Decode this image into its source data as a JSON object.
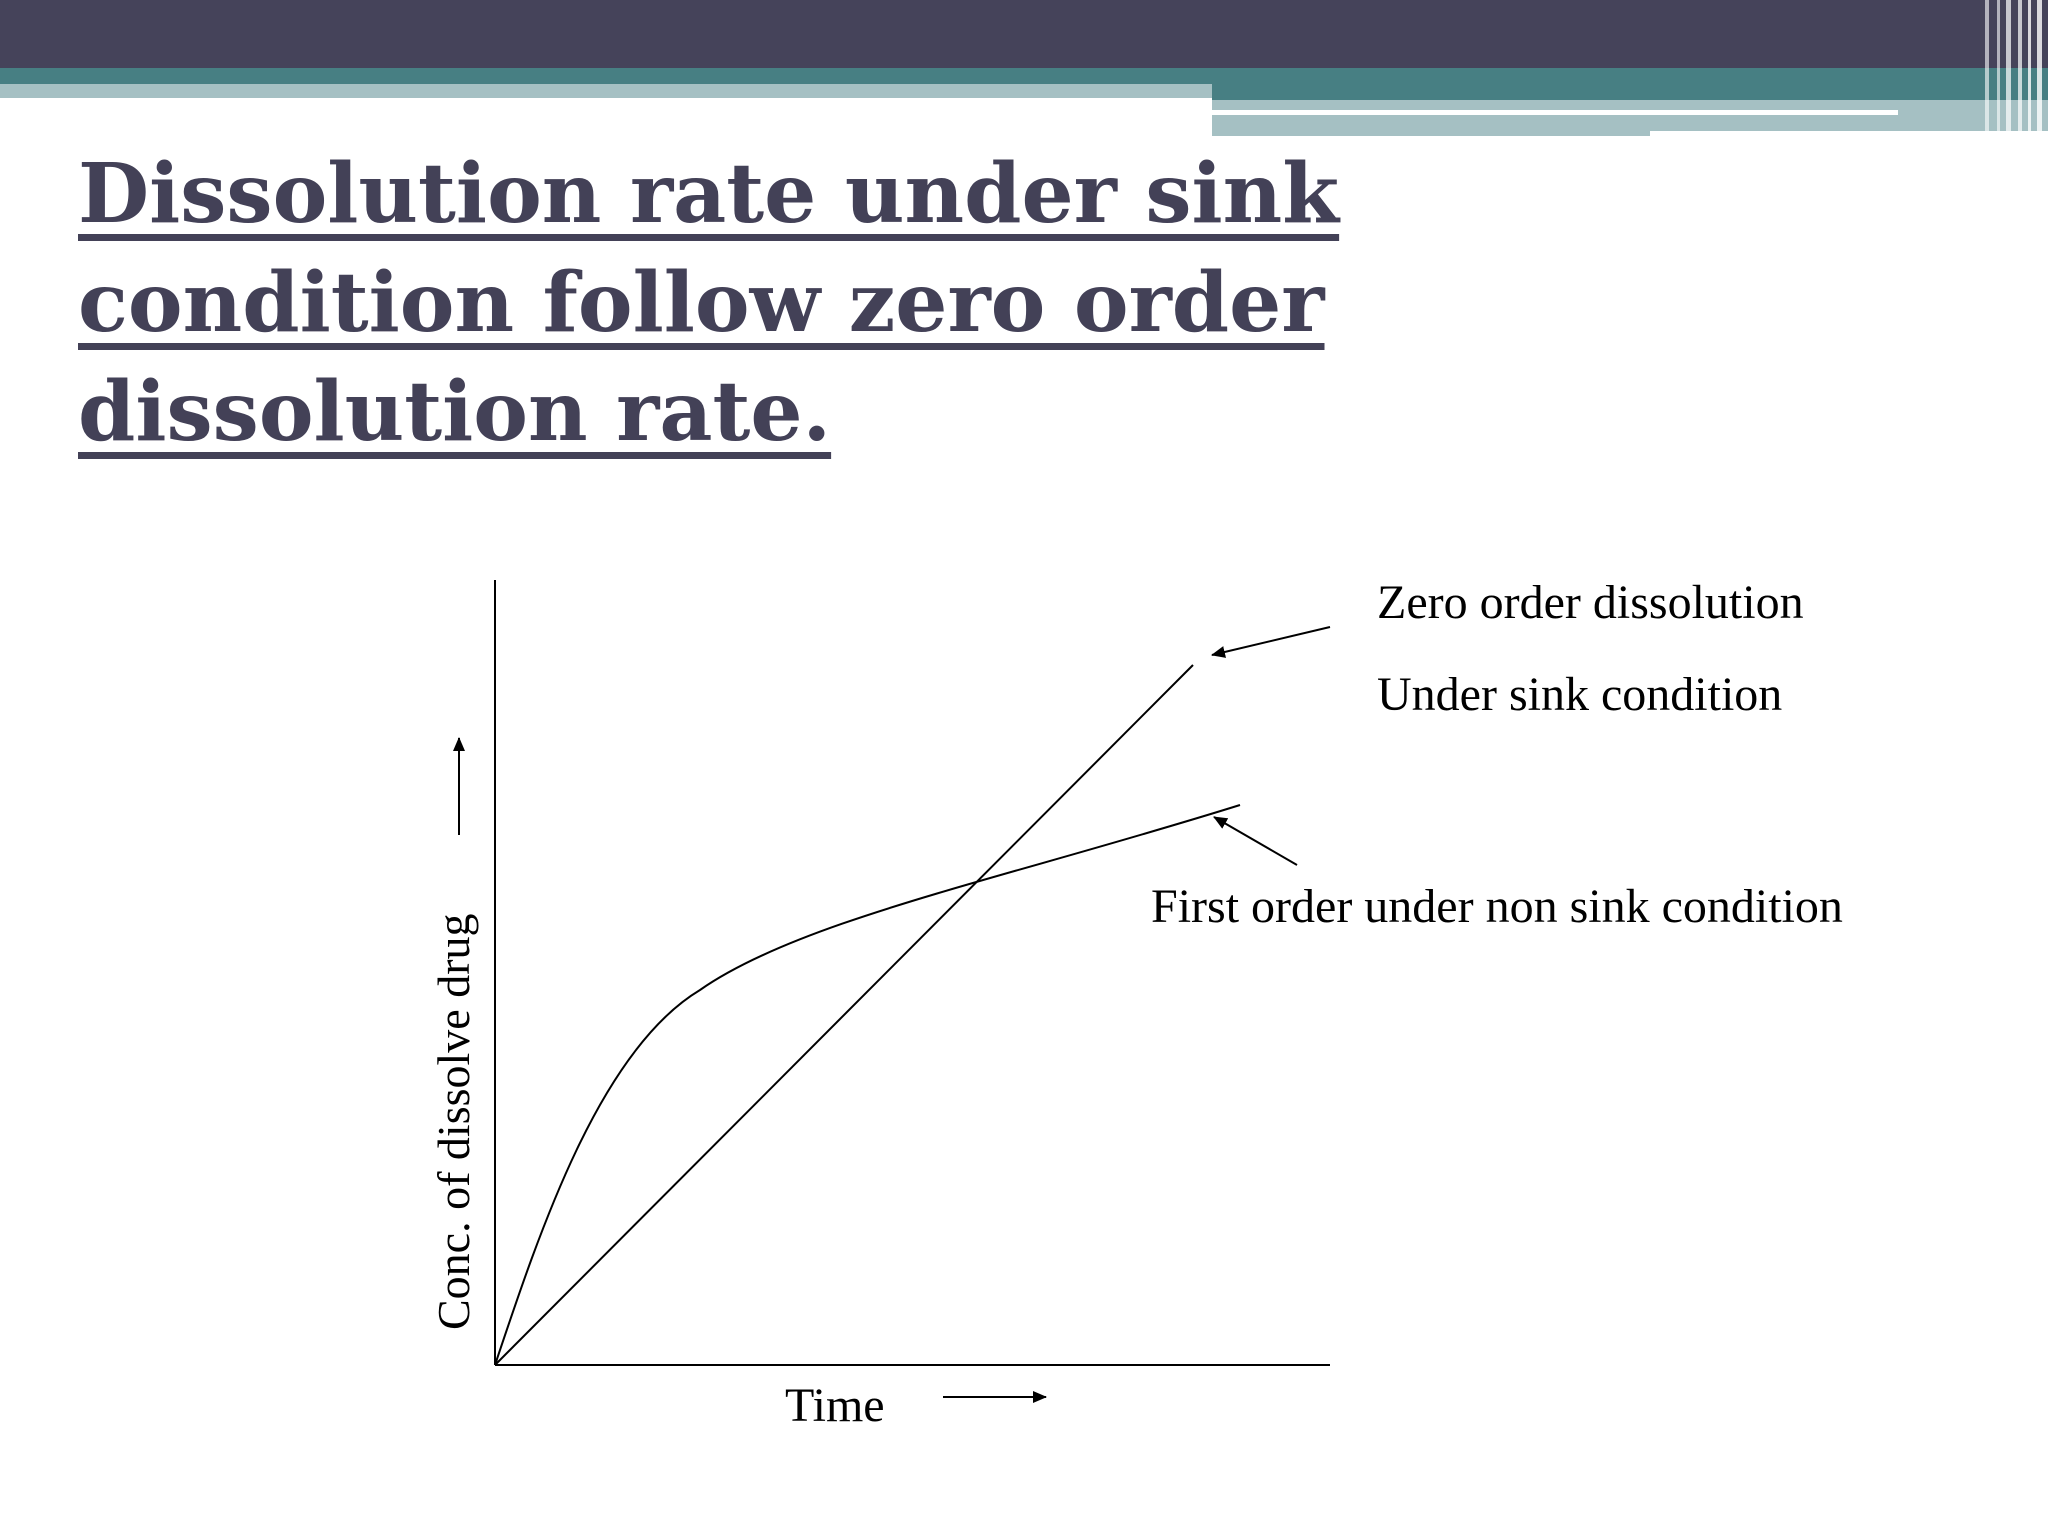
{
  "slide": {
    "title_lines": [
      "Dissolution rate under sink",
      "condition follow zero order",
      "dissolution rate."
    ]
  },
  "colors": {
    "banner_dark": "#45435a",
    "banner_teal": "#477f83",
    "banner_light": "#a5c0c3",
    "title_text": "#434157",
    "ink": "#000000"
  },
  "diagram": {
    "y_axis_label": "Conc.  of dissolve  drug",
    "x_axis_label": "Time",
    "zero_order_label_line1": "Zero order dissolution",
    "zero_order_label_line2": "Under sink condition",
    "first_order_label": "First order under non sink condition"
  }
}
